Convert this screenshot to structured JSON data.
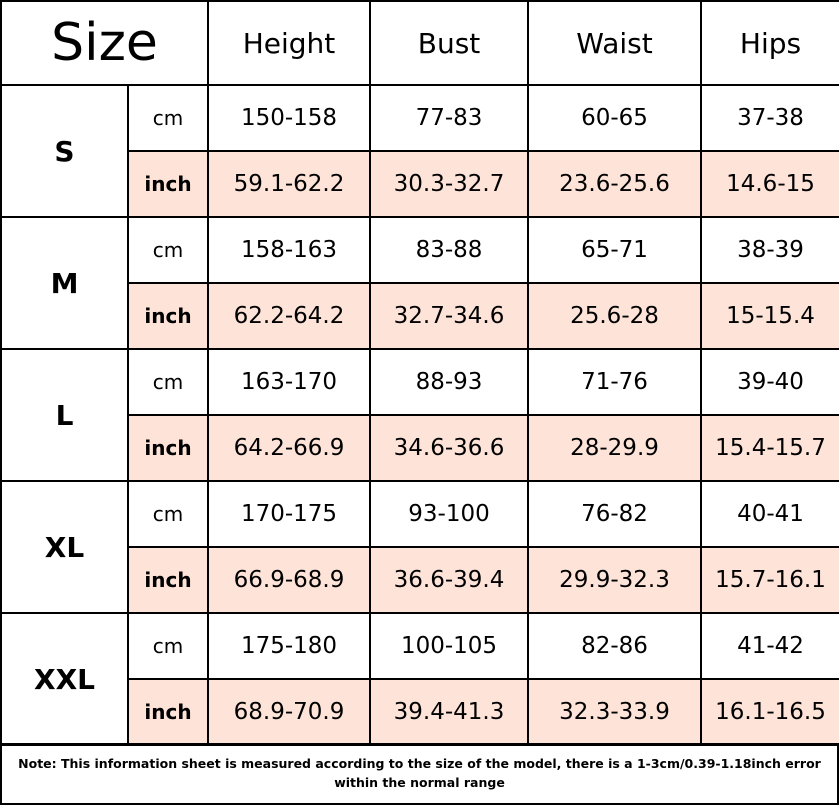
{
  "header": {
    "title": "Size",
    "columns": [
      "Height",
      "Bust",
      "Waist",
      "Hips"
    ]
  },
  "groups": [
    {
      "size": "S",
      "rows": [
        {
          "unit": "cm",
          "values": [
            "150-158",
            "77-83",
            "60-65",
            "37-38"
          ]
        },
        {
          "unit": "inch",
          "values": [
            "59.1-62.2",
            "30.3-32.7",
            "23.6-25.6",
            "14.6-15"
          ]
        }
      ]
    },
    {
      "size": "M",
      "rows": [
        {
          "unit": "cm",
          "values": [
            "158-163",
            "83-88",
            "65-71",
            "38-39"
          ]
        },
        {
          "unit": "inch",
          "values": [
            "62.2-64.2",
            "32.7-34.6",
            "25.6-28",
            "15-15.4"
          ]
        }
      ]
    },
    {
      "size": "L",
      "rows": [
        {
          "unit": "cm",
          "values": [
            "163-170",
            "88-93",
            "71-76",
            "39-40"
          ]
        },
        {
          "unit": "inch",
          "values": [
            "64.2-66.9",
            "34.6-36.6",
            "28-29.9",
            "15.4-15.7"
          ]
        }
      ]
    },
    {
      "size": "XL",
      "rows": [
        {
          "unit": "cm",
          "values": [
            "170-175",
            "93-100",
            "76-82",
            "40-41"
          ]
        },
        {
          "unit": "inch",
          "values": [
            "66.9-68.9",
            "36.6-39.4",
            "29.9-32.3",
            "15.7-16.1"
          ]
        }
      ]
    },
    {
      "size": "XXL",
      "rows": [
        {
          "unit": "cm",
          "values": [
            "175-180",
            "100-105",
            "82-86",
            "41-42"
          ]
        },
        {
          "unit": "inch",
          "values": [
            "68.9-70.9",
            "39.4-41.3",
            "32.3-33.9",
            "16.1-16.5"
          ]
        }
      ]
    }
  ],
  "note": "Note: This information sheet is measured according to the size of the model, there is a 1-3cm/0.39-1.18inch error within the normal range"
}
